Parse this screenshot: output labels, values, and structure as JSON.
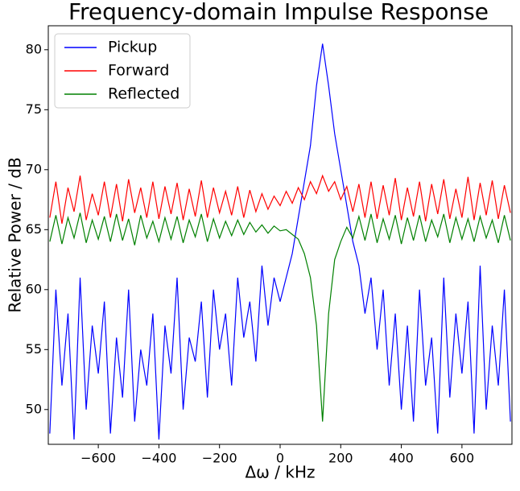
{
  "chart_data": {
    "type": "line",
    "title": "Frequency-domain Impulse Response",
    "x_label": "Δω / kHz",
    "y_label": "Relative Power / dB",
    "x": [
      -760,
      -740,
      -720,
      -700,
      -680,
      -660,
      -640,
      -620,
      -600,
      -580,
      -560,
      -540,
      -520,
      -500,
      -480,
      -460,
      -440,
      -420,
      -400,
      -380,
      -360,
      -340,
      -320,
      -300,
      -280,
      -260,
      -240,
      -220,
      -200,
      -180,
      -160,
      -140,
      -120,
      -100,
      -80,
      -60,
      -40,
      -20,
      0,
      20,
      40,
      60,
      80,
      100,
      120,
      140,
      160,
      180,
      200,
      220,
      240,
      260,
      280,
      300,
      320,
      340,
      360,
      380,
      400,
      420,
      440,
      460,
      480,
      500,
      520,
      540,
      560,
      580,
      600,
      620,
      640,
      660,
      680,
      700,
      720,
      740,
      760
    ],
    "series": [
      {
        "name": "Pickup",
        "color": "#0000ff",
        "values": [
          48,
          60,
          52,
          58,
          47.5,
          61,
          50,
          57,
          53,
          59,
          48,
          56,
          51,
          60,
          49,
          55,
          52,
          58,
          47.5,
          57,
          53,
          61,
          50,
          56,
          54,
          59,
          51,
          60,
          55,
          58,
          52,
          61,
          56,
          59,
          54,
          62,
          57,
          61,
          59,
          61,
          63,
          66,
          69,
          72,
          77,
          80.5,
          77,
          73,
          70,
          67,
          64,
          62,
          58,
          61,
          55,
          60,
          52,
          58,
          50,
          57,
          49,
          60,
          52,
          56,
          48,
          61,
          51,
          58,
          53,
          59,
          48,
          62,
          50,
          57,
          52,
          60,
          49
        ]
      },
      {
        "name": "Forward",
        "color": "#ff0000",
        "values": [
          66,
          69,
          65.5,
          68.5,
          66.5,
          69.5,
          65.8,
          68,
          66.2,
          69,
          66,
          68.8,
          65.7,
          69.2,
          66.4,
          68.5,
          66,
          69,
          65.9,
          68.6,
          66.3,
          68.9,
          65.8,
          68.4,
          66.1,
          69.1,
          66,
          68.5,
          66.4,
          68.2,
          66.2,
          68.6,
          66,
          68.3,
          66.5,
          68,
          66.7,
          67.8,
          67,
          68.2,
          67.2,
          68.5,
          67.5,
          69,
          68,
          69.5,
          68.2,
          69,
          67.5,
          68.6,
          66.5,
          68.8,
          66,
          69,
          65.9,
          68.7,
          66.2,
          69.3,
          65.8,
          68.5,
          66.1,
          69,
          65.7,
          68.8,
          66.3,
          69.2,
          65.9,
          68.4,
          66,
          69.4,
          65.8,
          68.9,
          66.2,
          69.1,
          65.9,
          68.7,
          66.4
        ]
      },
      {
        "name": "Reflected",
        "color": "#008000",
        "values": [
          64,
          66.2,
          63.8,
          66,
          64.3,
          66.4,
          63.9,
          65.8,
          64.2,
          66.1,
          64,
          66.3,
          64.1,
          65.9,
          63.7,
          66.2,
          64.3,
          65.7,
          64,
          66,
          64.2,
          66.1,
          63.9,
          65.8,
          64.4,
          66.3,
          64,
          65.9,
          64.3,
          65.7,
          64.5,
          65.8,
          64.6,
          65.6,
          64.8,
          65.4,
          64.7,
          65.3,
          64.9,
          65,
          64.6,
          64.2,
          63,
          61,
          57,
          49,
          58,
          62.5,
          64,
          65.2,
          64.3,
          66.1,
          64.1,
          66.3,
          63.9,
          65.9,
          64.2,
          66.2,
          63.8,
          66,
          64.1,
          66.2,
          64,
          65.8,
          64.4,
          66.3,
          63.9,
          66,
          64.2,
          65.9,
          64,
          66.1,
          64.3,
          65.8,
          63.9,
          66.2,
          64.1
        ]
      }
    ],
    "xlim": [
      -765,
      765
    ],
    "ylim": [
      47.1,
      82
    ],
    "xticks": [
      {
        "value": -600,
        "label": "−600"
      },
      {
        "value": -400,
        "label": "−400"
      },
      {
        "value": -200,
        "label": "−200"
      },
      0,
      200,
      400,
      600
    ],
    "yticks": [
      50,
      55,
      60,
      65,
      70,
      75,
      80
    ],
    "legend": "upper left"
  }
}
